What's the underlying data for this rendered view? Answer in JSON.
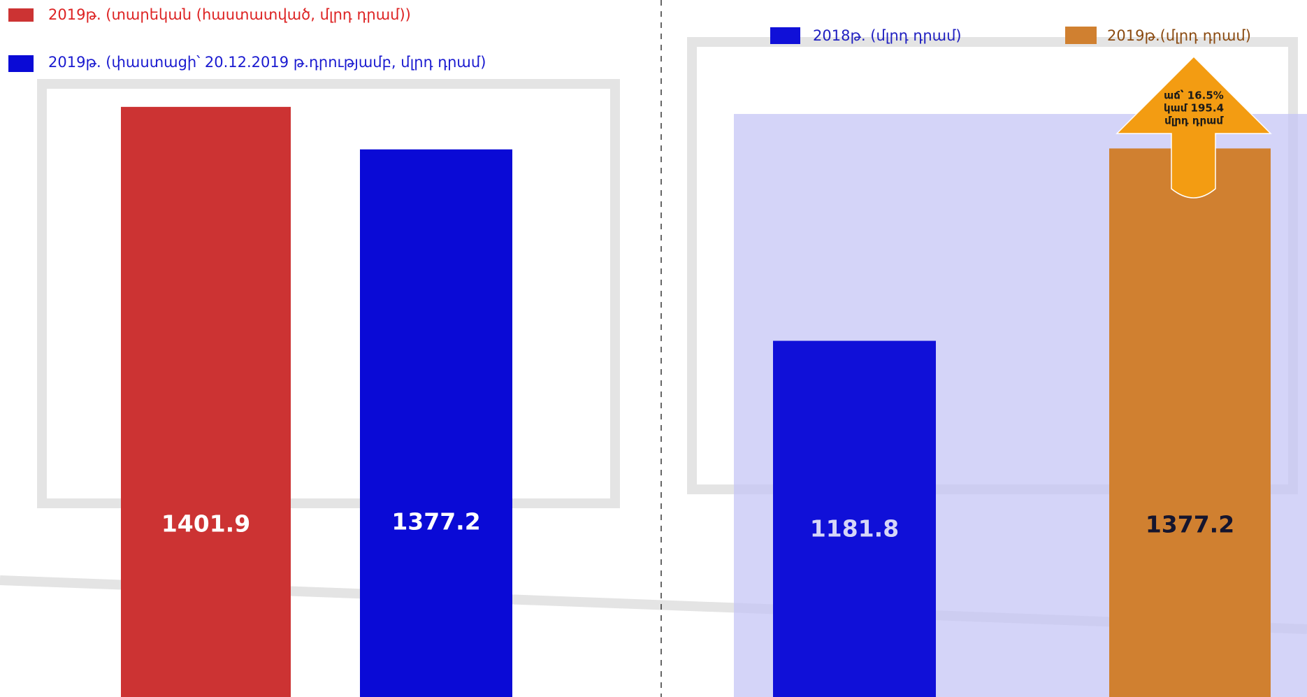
{
  "chart_data": [
    {
      "type": "bar",
      "categories": [
        null
      ],
      "series": [
        {
          "name": "2019թ. (տարեկան (հաստատված, մլրդ դրամ))",
          "color": "#cc3333",
          "values": [
            1401.9
          ]
        },
        {
          "name": "2019թ. (փաստացի՝ 20.12.2019 թ.դրությամբ, մլրդ դրամ)",
          "color": "#0a0ad6",
          "values": [
            1377.2
          ]
        }
      ],
      "ylim": [
        1059,
        1464
      ]
    },
    {
      "type": "bar",
      "categories": [
        null
      ],
      "series": [
        {
          "name": "2018թ. (մլրդ դրամ)",
          "color": "#1010d8",
          "values": [
            1181.8
          ]
        },
        {
          "name": "2019թ.(մլրդ դրամ)",
          "color": "#d08030",
          "values": [
            1377.2
          ]
        }
      ],
      "ylim": [
        820,
        1528
      ],
      "annotation": [
        "աճ՝ 16.5%",
        "կամ 195.4",
        "մլրդ դրամ"
      ]
    }
  ]
}
